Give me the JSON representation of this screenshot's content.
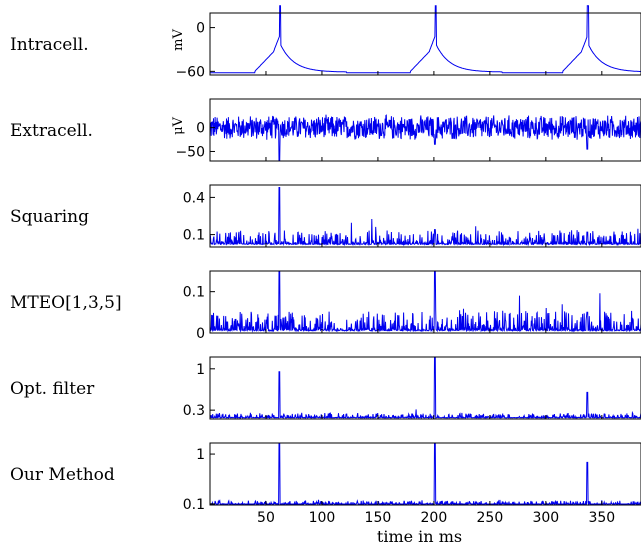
{
  "chart_data": {
    "type": "line",
    "xlabel": "time in ms",
    "xlim": [
      0,
      385
    ],
    "xticks": [
      50,
      100,
      150,
      200,
      250,
      300,
      350
    ],
    "spike_times_ms": [
      62,
      201,
      337
    ],
    "panels": [
      {
        "label": "Intracell.",
        "ylabel": "mV",
        "ylim": [
          -65,
          20
        ],
        "yticks": [
          -60,
          0
        ],
        "ytick_labels": [
          "−60",
          "0"
        ],
        "signal": "intracellular",
        "baseline": -60,
        "peak": 20
      },
      {
        "label": "Extracell.",
        "ylabel": "μV",
        "ylim": [
          -70,
          60
        ],
        "yticks": [
          -50,
          0
        ],
        "ytick_labels": [
          "−50",
          "0"
        ],
        "signal": "noise",
        "baseline": 0,
        "noise_amplitude": 28,
        "spike_amplitudes": [
          -70,
          -35,
          -45
        ]
      },
      {
        "label": "Squaring",
        "ylim": [
          0,
          0.5
        ],
        "yticks": [
          0.1,
          0.4
        ],
        "ytick_labels": [
          "0.1",
          "0.4"
        ],
        "signal": "detector",
        "baseline": 0.02,
        "noise_amplitude": 0.07,
        "spike_amplitudes": [
          0.48,
          0.14,
          0.12
        ]
      },
      {
        "label": "MTEO[1,3,5]",
        "ylim": [
          0,
          0.15
        ],
        "yticks": [
          0,
          0.1
        ],
        "ytick_labels": [
          "0",
          "0.1"
        ],
        "signal": "detector",
        "baseline": 0.005,
        "noise_amplitude": 0.03,
        "spike_amplitudes": [
          0.15,
          0.15,
          0.05
        ]
      },
      {
        "label": "Opt. filter",
        "ylim": [
          0.15,
          1.2
        ],
        "yticks": [
          0.3,
          1
        ],
        "ytick_labels": [
          "0.3",
          "1"
        ],
        "signal": "detector",
        "baseline": 0.17,
        "noise_amplitude": 0.05,
        "spike_amplitudes": [
          0.95,
          1.2,
          0.6
        ]
      },
      {
        "label": "Our Method",
        "ylim": [
          0.08,
          1.2
        ],
        "yticks": [
          0.1,
          1
        ],
        "ytick_labels": [
          "0.1",
          "1"
        ],
        "signal": "detector",
        "baseline": 0.09,
        "noise_amplitude": 0.04,
        "spike_amplitudes": [
          1.2,
          1.2,
          0.85
        ]
      }
    ]
  }
}
